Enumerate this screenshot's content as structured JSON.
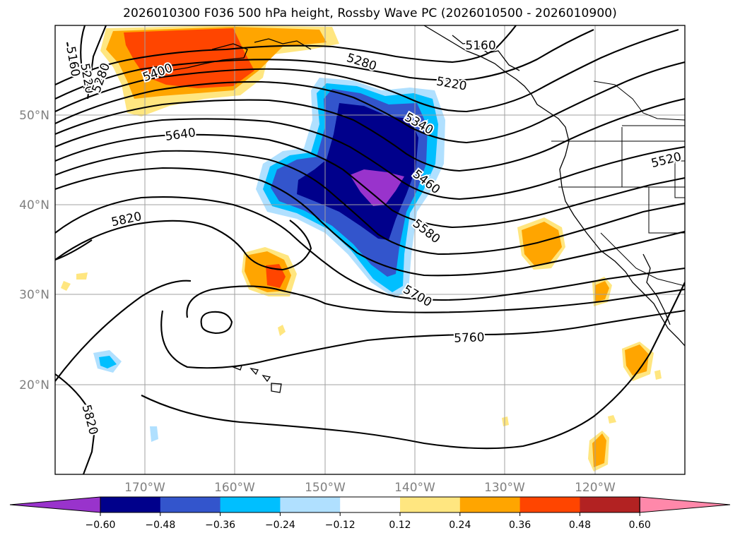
{
  "title": "2026010300 F036 500 hPa height, Rossby Wave PC (2026010500 - 2026010900)",
  "map": {
    "lat_labels": [
      "50°N",
      "40°N",
      "30°N",
      "20°N"
    ],
    "lon_labels": [
      "170°W",
      "160°W",
      "150°W",
      "140°W",
      "130°W",
      "120°W"
    ],
    "contour_labels": [
      "5160",
      "5220",
      "5280",
      "5280",
      "5160",
      "5400",
      "5340",
      "5640",
      "5460",
      "5520",
      "5820",
      "5580",
      "5700",
      "5760",
      "5820",
      "5220"
    ]
  },
  "colorbar": {
    "tick_labels": [
      "−0.60",
      "−0.48",
      "−0.36",
      "−0.24",
      "−0.12",
      "0.12",
      "0.24",
      "0.36",
      "0.48",
      "0.60"
    ],
    "colors": [
      "#9933cc",
      "#00008b",
      "#3355cc",
      "#00bfff",
      "#b0e0ff",
      "#ffffff",
      "#ffe680",
      "#ffa500",
      "#ff4500",
      "#b22222",
      "#ff88aa"
    ]
  }
}
